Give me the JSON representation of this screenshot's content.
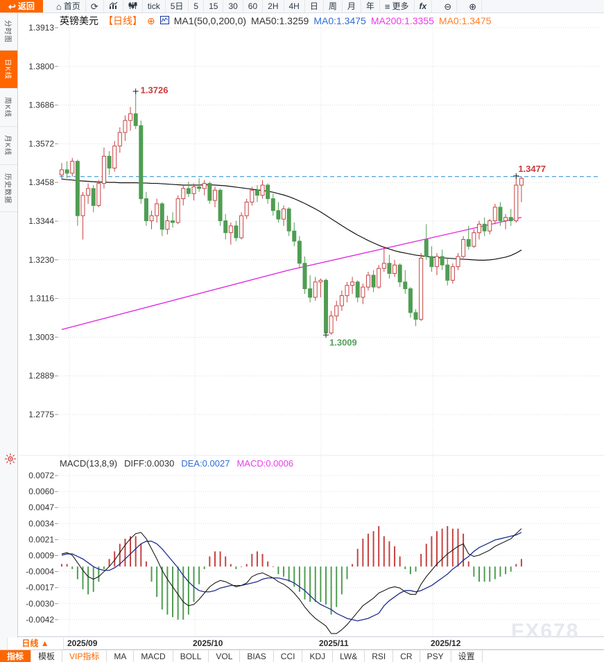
{
  "toolbar": {
    "items": [
      {
        "name": "back-button",
        "label": "返回",
        "icon": "back",
        "style": "primary"
      },
      {
        "name": "home-button",
        "label": "首页",
        "icon": "home"
      },
      {
        "name": "refresh-button",
        "label": "",
        "icon": "refresh"
      },
      {
        "name": "line-chart-type-button",
        "label": "",
        "icon": "line-chart"
      },
      {
        "name": "candle-chart-type-button",
        "label": "",
        "icon": "candle-chart"
      },
      {
        "name": "timeframe-tick",
        "label": "tick"
      },
      {
        "name": "timeframe-5d",
        "label": "5日"
      },
      {
        "name": "timeframe-5",
        "label": "5"
      },
      {
        "name": "timeframe-15",
        "label": "15"
      },
      {
        "name": "timeframe-30",
        "label": "30"
      },
      {
        "name": "timeframe-60",
        "label": "60"
      },
      {
        "name": "timeframe-2h",
        "label": "2H"
      },
      {
        "name": "timeframe-4h",
        "label": "4H"
      },
      {
        "name": "timeframe-day",
        "label": "日"
      },
      {
        "name": "timeframe-week",
        "label": "周"
      },
      {
        "name": "timeframe-month",
        "label": "月"
      },
      {
        "name": "timeframe-year",
        "label": "年"
      },
      {
        "name": "more-button",
        "label": "更多",
        "icon": "menu"
      },
      {
        "name": "fx-indicator-button",
        "label": "fx",
        "style": "fx"
      },
      {
        "name": "zoom-out-button",
        "label": "",
        "icon": "zoom-out",
        "style": "zoom"
      },
      {
        "name": "zoom-in-button",
        "label": "",
        "icon": "zoom-in",
        "style": "zoom"
      }
    ]
  },
  "title_bar": {
    "symbol": "英镑美元",
    "period_tag": "【日线】",
    "plus_icon": "⊕",
    "ma_settings": "MA1(50,0,200,0)",
    "ma50_label": "MA50:1.3259",
    "ma0_blue_label": "MA0:1.3475",
    "ma200_label": "MA200:1.3355",
    "ma0_orange_label": "MA0:1.3475"
  },
  "sidebar": {
    "tabs": [
      {
        "label": "分时图",
        "active": false
      },
      {
        "label": "日K线",
        "active": true
      },
      {
        "label": "周K线",
        "active": false
      },
      {
        "label": "月K线",
        "active": false
      },
      {
        "label": "历史数据",
        "active": false
      }
    ]
  },
  "macd_header": {
    "formula": "MACD(13,8,9)",
    "diff_label": "DIFF:0.0030",
    "dea_label": "DEA:0.0027",
    "macd_label": "MACD:0.0006"
  },
  "bottom": {
    "period_label": "日线 ▲",
    "watermark": "FX678",
    "indicator_tabs": [
      {
        "label": "指标",
        "state": "active"
      },
      {
        "label": "模板",
        "state": "normal"
      },
      {
        "label": "VIP指标",
        "state": "vip"
      },
      {
        "label": "MA",
        "state": "normal"
      },
      {
        "label": "MACD",
        "state": "normal"
      },
      {
        "label": "BOLL",
        "state": "normal"
      },
      {
        "label": "VOL",
        "state": "normal"
      },
      {
        "label": "BIAS",
        "state": "normal"
      },
      {
        "label": "CCI",
        "state": "normal"
      },
      {
        "label": "KDJ",
        "state": "normal"
      },
      {
        "label": "LW&",
        "state": "normal"
      },
      {
        "label": "RSI",
        "state": "normal"
      },
      {
        "label": "CR",
        "state": "normal"
      },
      {
        "label": "PSY",
        "state": "normal"
      },
      {
        "label": "设置",
        "state": "normal"
      }
    ]
  },
  "chart_data": [
    {
      "type": "candlestick",
      "title": "英镑美元 日线 (GBP/USD daily)",
      "y_ticks": [
        1.3913,
        1.38,
        1.3686,
        1.3572,
        1.3458,
        1.3344,
        1.323,
        1.3116,
        1.3003,
        1.2889,
        1.2775
      ],
      "ylim": [
        1.2775,
        1.3913
      ],
      "x_ticks": [
        "2025/09",
        "2025/10",
        "2025/11",
        "2025/12"
      ],
      "current_price": 1.3475,
      "grid": true,
      "colors": {
        "up": "#c64241",
        "down": "#4f9d52",
        "ma50": "#111111",
        "ma200": "#e020e0",
        "price_line": "#1e88d2",
        "high_label": "#c93a3a",
        "low_label": "#55a05a"
      },
      "annotations": [
        {
          "type": "high",
          "index": 14,
          "price": 1.3726,
          "label": "1.3726"
        },
        {
          "type": "low",
          "index": 50,
          "price": 1.3009,
          "label": "1.3009"
        },
        {
          "type": "last_high",
          "index": 86,
          "price": 1.3477,
          "label": "1.3477"
        }
      ],
      "ohlc": [
        [
          1.348,
          1.3515,
          1.3465,
          1.3495
        ],
        [
          1.3495,
          1.352,
          1.347,
          1.3485
        ],
        [
          1.3485,
          1.353,
          1.3475,
          1.352
        ],
        [
          1.352,
          1.3525,
          1.333,
          1.336
        ],
        [
          1.336,
          1.343,
          1.329,
          1.342
        ],
        [
          1.342,
          1.3455,
          1.3395,
          1.344
        ],
        [
          1.344,
          1.345,
          1.337,
          1.339
        ],
        [
          1.339,
          1.3465,
          1.3385,
          1.3455
        ],
        [
          1.3455,
          1.356,
          1.344,
          1.3535
        ],
        [
          1.3535,
          1.355,
          1.348,
          1.35
        ],
        [
          1.35,
          1.358,
          1.349,
          1.3565
        ],
        [
          1.3565,
          1.362,
          1.3545,
          1.3605
        ],
        [
          1.3605,
          1.3655,
          1.358,
          1.364
        ],
        [
          1.364,
          1.368,
          1.361,
          1.366
        ],
        [
          1.366,
          1.3726,
          1.3615,
          1.3625
        ],
        [
          1.3625,
          1.364,
          1.3395,
          1.341
        ],
        [
          1.341,
          1.343,
          1.333,
          1.3345
        ],
        [
          1.3345,
          1.3375,
          1.332,
          1.336
        ],
        [
          1.336,
          1.341,
          1.334,
          1.3395
        ],
        [
          1.3395,
          1.34,
          1.33,
          1.332
        ],
        [
          1.332,
          1.336,
          1.3305,
          1.3345
        ],
        [
          1.3345,
          1.337,
          1.3325,
          1.334
        ],
        [
          1.334,
          1.342,
          1.3335,
          1.341
        ],
        [
          1.341,
          1.345,
          1.339,
          1.344
        ],
        [
          1.344,
          1.346,
          1.3415,
          1.3425
        ],
        [
          1.3425,
          1.3455,
          1.3405,
          1.3445
        ],
        [
          1.3445,
          1.347,
          1.343,
          1.344
        ],
        [
          1.344,
          1.3465,
          1.342,
          1.3455
        ],
        [
          1.3455,
          1.346,
          1.3395,
          1.3405
        ],
        [
          1.3405,
          1.3445,
          1.3385,
          1.3435
        ],
        [
          1.3435,
          1.344,
          1.333,
          1.3345
        ],
        [
          1.3345,
          1.3365,
          1.329,
          1.331
        ],
        [
          1.331,
          1.334,
          1.3275,
          1.333
        ],
        [
          1.333,
          1.3345,
          1.3285,
          1.3295
        ],
        [
          1.3295,
          1.337,
          1.329,
          1.336
        ],
        [
          1.336,
          1.341,
          1.335,
          1.34
        ],
        [
          1.34,
          1.3445,
          1.339,
          1.3435
        ],
        [
          1.3435,
          1.345,
          1.34,
          1.342
        ],
        [
          1.342,
          1.3465,
          1.341,
          1.345
        ],
        [
          1.345,
          1.3455,
          1.3395,
          1.341
        ],
        [
          1.341,
          1.3425,
          1.336,
          1.3375
        ],
        [
          1.3375,
          1.34,
          1.334,
          1.335
        ],
        [
          1.335,
          1.339,
          1.333,
          1.338
        ],
        [
          1.338,
          1.3385,
          1.33,
          1.3315
        ],
        [
          1.3315,
          1.334,
          1.327,
          1.3285
        ],
        [
          1.3285,
          1.33,
          1.3205,
          1.322
        ],
        [
          1.322,
          1.324,
          1.313,
          1.3145
        ],
        [
          1.3145,
          1.3185,
          1.3105,
          1.312
        ],
        [
          1.312,
          1.318,
          1.311,
          1.3165
        ],
        [
          1.3165,
          1.3175,
          1.312,
          1.317
        ],
        [
          1.317,
          1.3175,
          1.3009,
          1.3015
        ],
        [
          1.3015,
          1.308,
          1.301,
          1.3065
        ],
        [
          1.3065,
          1.311,
          1.305,
          1.3095
        ],
        [
          1.3095,
          1.314,
          1.308,
          1.3125
        ],
        [
          1.3125,
          1.3165,
          1.3105,
          1.3155
        ],
        [
          1.3155,
          1.318,
          1.313,
          1.3165
        ],
        [
          1.3165,
          1.317,
          1.3105,
          1.312
        ],
        [
          1.312,
          1.316,
          1.31,
          1.315
        ],
        [
          1.315,
          1.3195,
          1.314,
          1.3185
        ],
        [
          1.3185,
          1.32,
          1.3135,
          1.315
        ],
        [
          1.315,
          1.3215,
          1.3145,
          1.3205
        ],
        [
          1.3205,
          1.327,
          1.3195,
          1.322
        ],
        [
          1.322,
          1.3245,
          1.3175,
          1.319
        ],
        [
          1.319,
          1.323,
          1.318,
          1.3215
        ],
        [
          1.3215,
          1.322,
          1.315,
          1.3165
        ],
        [
          1.3165,
          1.32,
          1.313,
          1.3145
        ],
        [
          1.3145,
          1.315,
          1.306,
          1.3075
        ],
        [
          1.3075,
          1.3085,
          1.3035,
          1.3055
        ],
        [
          1.3055,
          1.325,
          1.305,
          1.3235
        ],
        [
          1.329,
          1.3335,
          1.323,
          1.324
        ],
        [
          1.324,
          1.327,
          1.3195,
          1.321
        ],
        [
          1.321,
          1.325,
          1.3185,
          1.324
        ],
        [
          1.324,
          1.326,
          1.32,
          1.3215
        ],
        [
          1.3215,
          1.3235,
          1.3155,
          1.317
        ],
        [
          1.317,
          1.322,
          1.316,
          1.321
        ],
        [
          1.321,
          1.325,
          1.32,
          1.324
        ],
        [
          1.324,
          1.33,
          1.3235,
          1.329
        ],
        [
          1.329,
          1.333,
          1.326,
          1.327
        ],
        [
          1.327,
          1.332,
          1.3265,
          1.331
        ],
        [
          1.331,
          1.3345,
          1.329,
          1.3335
        ],
        [
          1.3335,
          1.3355,
          1.33,
          1.3315
        ],
        [
          1.3315,
          1.335,
          1.3305,
          1.3345
        ],
        [
          1.3345,
          1.3395,
          1.3335,
          1.3385
        ],
        [
          1.3385,
          1.34,
          1.333,
          1.3345
        ],
        [
          1.3345,
          1.3365,
          1.332,
          1.3355
        ],
        [
          1.3355,
          1.338,
          1.333,
          1.3345
        ],
        [
          1.3345,
          1.3477,
          1.334,
          1.345
        ],
        [
          1.345,
          1.3475,
          1.34,
          1.347
        ]
      ],
      "ma50": [
        1.3468,
        1.3466,
        1.3465,
        1.3463,
        1.3462,
        1.3461,
        1.346,
        1.3459,
        1.3459,
        1.3458,
        1.3458,
        1.3457,
        1.3457,
        1.3457,
        1.3457,
        1.3456,
        1.3456,
        1.3455,
        1.3455,
        1.3454,
        1.3453,
        1.3452,
        1.3451,
        1.345,
        1.345,
        1.345,
        1.345,
        1.3451,
        1.3451,
        1.345,
        1.3449,
        1.3448,
        1.3446,
        1.3444,
        1.3442,
        1.344,
        1.3438,
        1.3436,
        1.3434,
        1.3432,
        1.3429,
        1.3425,
        1.3421,
        1.3416,
        1.341,
        1.3403,
        1.3396,
        1.3388,
        1.338,
        1.3371,
        1.3361,
        1.3351,
        1.3341,
        1.3331,
        1.3321,
        1.3312,
        1.3303,
        1.3295,
        1.3287,
        1.328,
        1.3273,
        1.3267,
        1.3262,
        1.3257,
        1.3253,
        1.325,
        1.3247,
        1.3244,
        1.3242,
        1.324,
        1.3238,
        1.3237,
        1.3236,
        1.3235,
        1.3234,
        1.3233,
        1.3232,
        1.3231,
        1.323,
        1.3229,
        1.3229,
        1.323,
        1.3232,
        1.3235,
        1.3238,
        1.3243,
        1.325,
        1.3259
      ],
      "ma200": {
        "start": 1.3025,
        "mid": 1.32,
        "end": 1.3355
      }
    },
    {
      "type": "macd",
      "title": "MACD(13,8,9)",
      "y_ticks": [
        0.0072,
        0.006,
        0.0047,
        0.0034,
        0.0021,
        0.0009,
        -0.0004,
        -0.0017,
        -0.003,
        -0.0042
      ],
      "values": {
        "diff": 0.003,
        "dea": 0.0027,
        "macd": 0.0006
      },
      "histogram_rule": "2*(DIFF-DEA)",
      "colors": {
        "positive": "#c64241",
        "negative": "#4f9d52",
        "diff_line": "#1a1a1a",
        "dea_line": "#1b2d8f"
      },
      "diff": [
        0.001,
        0.0011,
        0.0009,
        0.0003,
        -0.0003,
        -0.0008,
        -0.001,
        -0.0008,
        -0.0004,
        0.0,
        0.0005,
        0.0011,
        0.0017,
        0.0022,
        0.0026,
        0.0027,
        0.0022,
        0.0014,
        0.0006,
        -0.0003,
        -0.001,
        -0.0016,
        -0.0022,
        -0.0028,
        -0.0031,
        -0.003,
        -0.0026,
        -0.0021,
        -0.0016,
        -0.0013,
        -0.0011,
        -0.0012,
        -0.0014,
        -0.0016,
        -0.0015,
        -0.0013,
        -0.0008,
        -0.0006,
        -0.0005,
        -0.0007,
        -0.0009,
        -0.0012,
        -0.0014,
        -0.0017,
        -0.0021,
        -0.0026,
        -0.0032,
        -0.0037,
        -0.0041,
        -0.0044,
        -0.0047,
        -0.0053,
        -0.0053,
        -0.005,
        -0.0046,
        -0.0041,
        -0.0036,
        -0.0031,
        -0.0028,
        -0.0025,
        -0.0021,
        -0.0019,
        -0.0017,
        -0.0016,
        -0.0017,
        -0.002,
        -0.0022,
        -0.0022,
        -0.0014,
        -0.0008,
        -0.0003,
        0.0002,
        0.0006,
        0.001,
        0.0013,
        0.0016,
        0.0018,
        0.001,
        0.0008,
        0.0009,
        0.0011,
        0.0013,
        0.0016,
        0.0018,
        0.002,
        0.0022,
        0.0026,
        0.003
      ],
      "dea": [
        0.0009,
        0.001,
        0.001,
        0.0008,
        0.0006,
        0.0003,
        0.0,
        -0.0002,
        -0.0003,
        -0.0003,
        -0.0001,
        0.0002,
        0.0006,
        0.001,
        0.0014,
        0.0018,
        0.002,
        0.002,
        0.0018,
        0.0014,
        0.0009,
        0.0004,
        -0.0001,
        -0.0007,
        -0.0012,
        -0.0016,
        -0.0019,
        -0.002,
        -0.002,
        -0.0019,
        -0.0017,
        -0.0016,
        -0.0015,
        -0.0015,
        -0.0015,
        -0.0014,
        -0.0013,
        -0.0012,
        -0.001,
        -0.0009,
        -0.0009,
        -0.0009,
        -0.001,
        -0.0011,
        -0.0013,
        -0.0016,
        -0.0019,
        -0.0023,
        -0.0027,
        -0.003,
        -0.0032,
        -0.0034,
        -0.0037,
        -0.0039,
        -0.0041,
        -0.0042,
        -0.0043,
        -0.0042,
        -0.0041,
        -0.0039,
        -0.0037,
        -0.0031,
        -0.0027,
        -0.0024,
        -0.0021,
        -0.0019,
        -0.0019,
        -0.002,
        -0.0019,
        -0.0017,
        -0.0015,
        -0.0012,
        -0.0009,
        -0.0006,
        -0.0002,
        0.0001,
        0.0005,
        0.0008,
        0.0012,
        0.0015,
        0.0017,
        0.0019,
        0.0021,
        0.0022,
        0.0023,
        0.0024,
        0.0025,
        0.0027
      ]
    }
  ]
}
